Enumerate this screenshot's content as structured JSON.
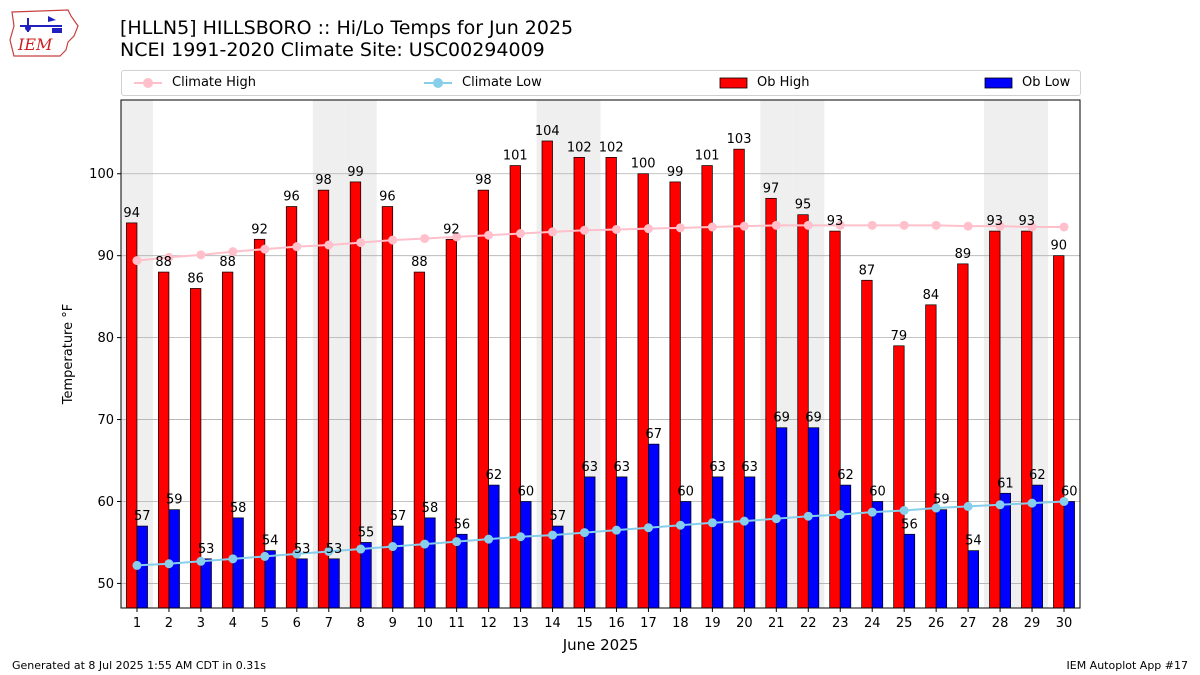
{
  "header": {
    "title_line1": "[HLLN5] HILLSBORO :: Hi/Lo Temps for Jun 2025",
    "title_line2": "NCEI 1991-2020 Climate Site: USC00294009",
    "logo_text": "IEM"
  },
  "legend": {
    "climate_high": "Climate High",
    "climate_low": "Climate Low",
    "ob_high": "Ob High",
    "ob_low": "Ob Low"
  },
  "footer": {
    "generated": "Generated at 8 Jul 2025 1:55 AM CDT in 0.31s",
    "app": "IEM Autoplot App #17"
  },
  "colors": {
    "ob_high": "#ff0000",
    "ob_low": "#0000ff",
    "climate_high": "#ffc0cb",
    "climate_low": "#87ceeb",
    "weekend_shade": "#efefef",
    "grid": "#b0b0b0"
  },
  "chart_data": {
    "type": "bar",
    "xlabel": "June 2025",
    "ylabel": "Temperature °F",
    "ylim": [
      47,
      109
    ],
    "yticks": [
      50,
      60,
      70,
      80,
      90,
      100
    ],
    "grid": "horizontal",
    "legend_position": "top",
    "categories": [
      "1",
      "2",
      "3",
      "4",
      "5",
      "6",
      "7",
      "8",
      "9",
      "10",
      "11",
      "12",
      "13",
      "14",
      "15",
      "16",
      "17",
      "18",
      "19",
      "20",
      "21",
      "22",
      "23",
      "24",
      "25",
      "26",
      "27",
      "28",
      "29",
      "30"
    ],
    "shaded_days": [
      "1",
      "7",
      "8",
      "14",
      "15",
      "21",
      "22",
      "28",
      "29"
    ],
    "series": [
      {
        "name": "Ob High",
        "kind": "bar",
        "values": [
          94,
          88,
          86,
          88,
          92,
          96,
          98,
          99,
          96,
          88,
          92,
          98,
          101,
          104,
          102,
          102,
          100,
          99,
          101,
          103,
          97,
          95,
          93,
          87,
          79,
          84,
          89,
          93,
          93,
          90
        ]
      },
      {
        "name": "Ob Low",
        "kind": "bar",
        "values": [
          57,
          59,
          53,
          58,
          54,
          53,
          53,
          55,
          57,
          58,
          56,
          62,
          60,
          57,
          63,
          63,
          67,
          60,
          63,
          63,
          69,
          69,
          62,
          60,
          56,
          59,
          54,
          61,
          62,
          60
        ]
      },
      {
        "name": "Climate High",
        "kind": "line",
        "values": [
          89.4,
          89.8,
          90.1,
          90.5,
          90.8,
          91.1,
          91.3,
          91.6,
          91.9,
          92.1,
          92.3,
          92.5,
          92.7,
          92.9,
          93.1,
          93.2,
          93.3,
          93.4,
          93.5,
          93.6,
          93.7,
          93.7,
          93.7,
          93.7,
          93.7,
          93.7,
          93.6,
          93.6,
          93.5,
          93.5
        ]
      },
      {
        "name": "Climate Low",
        "kind": "line",
        "values": [
          52.2,
          52.4,
          52.7,
          53.0,
          53.3,
          53.6,
          53.9,
          54.2,
          54.5,
          54.8,
          55.1,
          55.4,
          55.7,
          55.9,
          56.2,
          56.5,
          56.8,
          57.1,
          57.4,
          57.6,
          57.9,
          58.2,
          58.4,
          58.7,
          58.9,
          59.2,
          59.4,
          59.6,
          59.8,
          60.0
        ]
      }
    ]
  }
}
